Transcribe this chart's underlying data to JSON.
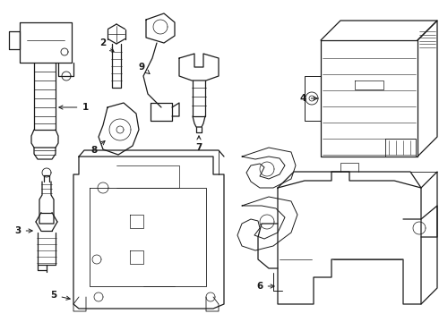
{
  "bg_color": "#ffffff",
  "line_color": "#1a1a1a",
  "line_width": 0.9,
  "label_fontsize": 7.5,
  "fig_w": 4.9,
  "fig_h": 3.6,
  "dpi": 100
}
